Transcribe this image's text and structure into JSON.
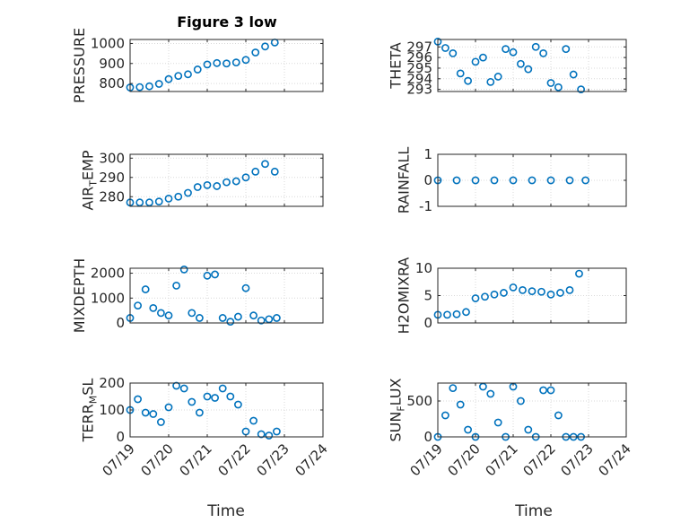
{
  "figure": {
    "title": "Figure 3 low",
    "xlabel": "Time"
  },
  "style": {
    "marker_color": "#0072BD",
    "axis_color": "#262626",
    "grid_color": "#d9d9d9"
  },
  "chart_data": [
    {
      "type": "scatter",
      "id": "pressure",
      "ylabel": "PRESSURE",
      "ylabel_sub": "",
      "xlim": [
        "07/19",
        "07/24"
      ],
      "xticks": [
        "07/19",
        "07/20",
        "07/21",
        "07/22",
        "07/23",
        "07/24"
      ],
      "show_xticklabels": false,
      "ylim": [
        760,
        1020
      ],
      "yticks": [
        800,
        900,
        1000
      ],
      "ytick_labels": [
        "800",
        "900",
        "1000"
      ],
      "grid": true,
      "series": [
        {
          "marker": "circle",
          "x_time": [
            "07/19 00:00",
            "07/19 06:00",
            "07/19 12:00",
            "07/19 18:00",
            "07/20 00:00",
            "07/20 06:00",
            "07/20 12:00",
            "07/20 18:00",
            "07/21 00:00",
            "07/21 06:00",
            "07/21 12:00",
            "07/21 18:00",
            "07/22 00:00",
            "07/22 06:00",
            "07/22 12:00",
            "07/22 18:00"
          ],
          "x": [
            0,
            0.25,
            0.5,
            0.75,
            1.0,
            1.25,
            1.5,
            1.75,
            2.0,
            2.25,
            2.5,
            2.75,
            3.0,
            3.25,
            3.5,
            3.75
          ],
          "y": [
            780,
            782,
            786,
            798,
            822,
            838,
            846,
            870,
            895,
            902,
            900,
            905,
            918,
            955,
            985,
            1005
          ]
        }
      ]
    },
    {
      "type": "scatter",
      "id": "theta",
      "ylabel": "THETA",
      "ylabel_sub": "",
      "xlim": [
        "07/19",
        "07/24"
      ],
      "xticks": [
        "07/19",
        "07/20",
        "07/21",
        "07/22",
        "07/23",
        "07/24"
      ],
      "show_xticklabels": false,
      "ylim": [
        292.8,
        297.7
      ],
      "yticks": [
        293,
        294,
        295,
        296,
        297
      ],
      "ytick_labels": [
        "293",
        "294",
        "295",
        "296",
        "297"
      ],
      "grid": true,
      "series": [
        {
          "marker": "circle",
          "x_time": [
            "07/19 00:00",
            "07/19 04:48",
            "07/19 09:36",
            "07/19 14:24",
            "07/19 19:12",
            "07/20 00:00",
            "07/20 04:48",
            "07/20 09:36",
            "07/20 14:24",
            "07/20 19:12",
            "07/21 00:00",
            "07/21 04:48",
            "07/21 09:36",
            "07/21 14:24",
            "07/21 19:12",
            "07/22 00:00",
            "07/22 04:48",
            "07/22 09:36",
            "07/22 14:24",
            "07/22 19:12"
          ],
          "x": [
            0,
            0.2,
            0.4,
            0.6,
            0.8,
            1.0,
            1.2,
            1.4,
            1.6,
            1.8,
            2.0,
            2.2,
            2.4,
            2.6,
            2.8,
            3.0,
            3.2,
            3.4,
            3.6,
            3.8
          ],
          "y": [
            297.5,
            296.9,
            296.4,
            294.5,
            293.8,
            295.6,
            296.0,
            293.7,
            294.2,
            296.8,
            296.5,
            295.4,
            294.9,
            297.0,
            296.4,
            293.6,
            293.2,
            296.8,
            294.4,
            293.0
          ]
        }
      ]
    },
    {
      "type": "scatter",
      "id": "air_temp",
      "ylabel": "AIR",
      "ylabel_sub": "T",
      "ylabel_tail": "EMP",
      "xlim": [
        "07/19",
        "07/24"
      ],
      "xticks": [
        "07/19",
        "07/20",
        "07/21",
        "07/22",
        "07/23",
        "07/24"
      ],
      "show_xticklabels": false,
      "ylim": [
        275,
        302
      ],
      "yticks": [
        280,
        290,
        300
      ],
      "ytick_labels": [
        "280",
        "290",
        "300"
      ],
      "grid": true,
      "series": [
        {
          "marker": "circle",
          "x_time": [
            "07/19 00:00",
            "07/19 06:00",
            "07/19 12:00",
            "07/19 18:00",
            "07/20 00:00",
            "07/20 06:00",
            "07/20 12:00",
            "07/20 18:00",
            "07/21 00:00",
            "07/21 06:00",
            "07/21 12:00",
            "07/21 18:00",
            "07/22 00:00",
            "07/22 06:00",
            "07/22 12:00",
            "07/22 18:00"
          ],
          "x": [
            0,
            0.25,
            0.5,
            0.75,
            1.0,
            1.25,
            1.5,
            1.75,
            2.0,
            2.25,
            2.5,
            2.75,
            3.0,
            3.25,
            3.5,
            3.75
          ],
          "y": [
            277,
            277,
            277,
            277.5,
            279,
            280,
            282,
            285,
            286,
            285.5,
            287.5,
            288,
            290,
            293,
            297,
            293
          ]
        }
      ]
    },
    {
      "type": "scatter",
      "id": "rainfall",
      "ylabel": "RAINFALL",
      "ylabel_sub": "",
      "xlim": [
        "07/19",
        "07/24"
      ],
      "xticks": [
        "07/19",
        "07/20",
        "07/21",
        "07/22",
        "07/23",
        "07/24"
      ],
      "show_xticklabels": false,
      "ylim": [
        -1,
        1
      ],
      "yticks": [
        -1,
        0,
        1
      ],
      "ytick_labels": [
        "-1",
        "0",
        "1"
      ],
      "grid": true,
      "series": [
        {
          "marker": "circle",
          "x_time": [
            "07/19 00:00",
            "07/19 12:00",
            "07/20 00:00",
            "07/20 12:00",
            "07/21 00:00",
            "07/21 12:00",
            "07/22 00:00",
            "07/22 12:00",
            "07/22 22:00"
          ],
          "x": [
            0,
            0.5,
            1.0,
            1.5,
            2.0,
            2.5,
            3.0,
            3.5,
            3.92
          ],
          "y": [
            0,
            0,
            0,
            0,
            0,
            0,
            0,
            0,
            0
          ]
        }
      ]
    },
    {
      "type": "scatter",
      "id": "mixdepth",
      "ylabel": "MIXDEPTH",
      "ylabel_sub": "",
      "xlim": [
        "07/19",
        "07/24"
      ],
      "xticks": [
        "07/19",
        "07/20",
        "07/21",
        "07/22",
        "07/23",
        "07/24"
      ],
      "show_xticklabels": false,
      "ylim": [
        0,
        2200
      ],
      "yticks": [
        0,
        1000,
        2000
      ],
      "ytick_labels": [
        "0",
        "1000",
        "2000"
      ],
      "grid": true,
      "series": [
        {
          "marker": "circle",
          "x_time": [
            "07/19 00:00",
            "07/19 04:48",
            "07/19 09:36",
            "07/19 14:24",
            "07/19 19:12",
            "07/20 00:00",
            "07/20 04:48",
            "07/20 09:36",
            "07/20 14:24",
            "07/20 19:12",
            "07/21 00:00",
            "07/21 04:48",
            "07/21 09:36",
            "07/21 14:24",
            "07/21 19:12",
            "07/22 00:00",
            "07/22 04:48",
            "07/22 09:36",
            "07/22 14:24",
            "07/22 19:12"
          ],
          "x": [
            0,
            0.2,
            0.4,
            0.6,
            0.8,
            1.0,
            1.2,
            1.4,
            1.6,
            1.8,
            2.0,
            2.2,
            2.4,
            2.6,
            2.8,
            3.0,
            3.2,
            3.4,
            3.6,
            3.8
          ],
          "y": [
            200,
            700,
            1350,
            600,
            400,
            300,
            1500,
            2150,
            400,
            200,
            1900,
            1950,
            200,
            50,
            250,
            1400,
            300,
            100,
            150,
            200
          ]
        }
      ]
    },
    {
      "type": "scatter",
      "id": "h2omixra",
      "ylabel": "H2OMIXRA",
      "ylabel_sub": "",
      "xlim": [
        "07/19",
        "07/24"
      ],
      "xticks": [
        "07/19",
        "07/20",
        "07/21",
        "07/22",
        "07/23",
        "07/24"
      ],
      "show_xticklabels": false,
      "ylim": [
        0,
        10
      ],
      "yticks": [
        0,
        5,
        10
      ],
      "ytick_labels": [
        "0",
        "5",
        "10"
      ],
      "grid": true,
      "series": [
        {
          "marker": "circle",
          "x_time": [
            "07/19 00:00",
            "07/19 06:00",
            "07/19 12:00",
            "07/19 18:00",
            "07/20 00:00",
            "07/20 06:00",
            "07/20 12:00",
            "07/20 18:00",
            "07/21 00:00",
            "07/21 06:00",
            "07/21 12:00",
            "07/21 18:00",
            "07/22 00:00",
            "07/22 06:00",
            "07/22 12:00",
            "07/22 18:00"
          ],
          "x": [
            0,
            0.25,
            0.5,
            0.75,
            1.0,
            1.25,
            1.5,
            1.75,
            2.0,
            2.25,
            2.5,
            2.75,
            3.0,
            3.25,
            3.5,
            3.75
          ],
          "y": [
            1.5,
            1.5,
            1.6,
            2.0,
            4.5,
            4.8,
            5.2,
            5.5,
            6.5,
            6.0,
            5.8,
            5.7,
            5.2,
            5.5,
            6.0,
            9.0
          ]
        }
      ]
    },
    {
      "type": "scatter",
      "id": "terr_msl",
      "ylabel": "TERR",
      "ylabel_sub": "M",
      "ylabel_tail": "SL",
      "xlim": [
        "07/19",
        "07/24"
      ],
      "xticks": [
        "07/19",
        "07/20",
        "07/21",
        "07/22",
        "07/23",
        "07/24"
      ],
      "show_xticklabels": true,
      "ylim": [
        0,
        200
      ],
      "yticks": [
        0,
        100,
        200
      ],
      "ytick_labels": [
        "0",
        "100",
        "200"
      ],
      "grid": true,
      "series": [
        {
          "marker": "circle",
          "x_time": [
            "07/19 00:00",
            "07/19 04:48",
            "07/19 09:36",
            "07/19 14:24",
            "07/19 19:12",
            "07/20 00:00",
            "07/20 04:48",
            "07/20 09:36",
            "07/20 14:24",
            "07/20 19:12",
            "07/21 00:00",
            "07/21 04:48",
            "07/21 09:36",
            "07/21 14:24",
            "07/21 19:12",
            "07/22 00:00",
            "07/22 04:48",
            "07/22 09:36",
            "07/22 14:24",
            "07/22 19:12"
          ],
          "x": [
            0,
            0.2,
            0.4,
            0.6,
            0.8,
            1.0,
            1.2,
            1.4,
            1.6,
            1.8,
            2.0,
            2.2,
            2.4,
            2.6,
            2.8,
            3.0,
            3.2,
            3.4,
            3.6,
            3.8
          ],
          "y": [
            100,
            140,
            90,
            85,
            55,
            110,
            190,
            180,
            130,
            90,
            150,
            145,
            180,
            150,
            120,
            20,
            60,
            10,
            5,
            20
          ]
        }
      ]
    },
    {
      "type": "scatter",
      "id": "sun_flux",
      "ylabel": "SUN",
      "ylabel_sub": "F",
      "ylabel_tail": "LUX",
      "xlim": [
        "07/19",
        "07/24"
      ],
      "xticks": [
        "07/19",
        "07/20",
        "07/21",
        "07/22",
        "07/23",
        "07/24"
      ],
      "show_xticklabels": true,
      "ylim": [
        0,
        750
      ],
      "yticks": [
        0,
        500
      ],
      "ytick_labels": [
        "0",
        "500"
      ],
      "grid": true,
      "series": [
        {
          "marker": "circle",
          "x_time": [
            "07/19 00:00",
            "07/19 04:48",
            "07/19 09:36",
            "07/19 14:24",
            "07/19 19:12",
            "07/20 00:00",
            "07/20 04:48",
            "07/20 09:36",
            "07/20 14:24",
            "07/20 19:12",
            "07/21 00:00",
            "07/21 04:48",
            "07/21 09:36",
            "07/21 14:24",
            "07/21 19:12",
            "07/22 00:00",
            "07/22 04:48",
            "07/22 09:36",
            "07/22 14:24",
            "07/22 19:12"
          ],
          "x": [
            0,
            0.2,
            0.4,
            0.6,
            0.8,
            1.0,
            1.2,
            1.4,
            1.6,
            1.8,
            2.0,
            2.2,
            2.4,
            2.6,
            2.8,
            3.0,
            3.2,
            3.4,
            3.6,
            3.8
          ],
          "y": [
            0,
            300,
            680,
            450,
            100,
            0,
            700,
            600,
            200,
            0,
            700,
            500,
            100,
            0,
            650,
            650,
            300,
            0,
            0,
            0
          ]
        }
      ]
    }
  ]
}
